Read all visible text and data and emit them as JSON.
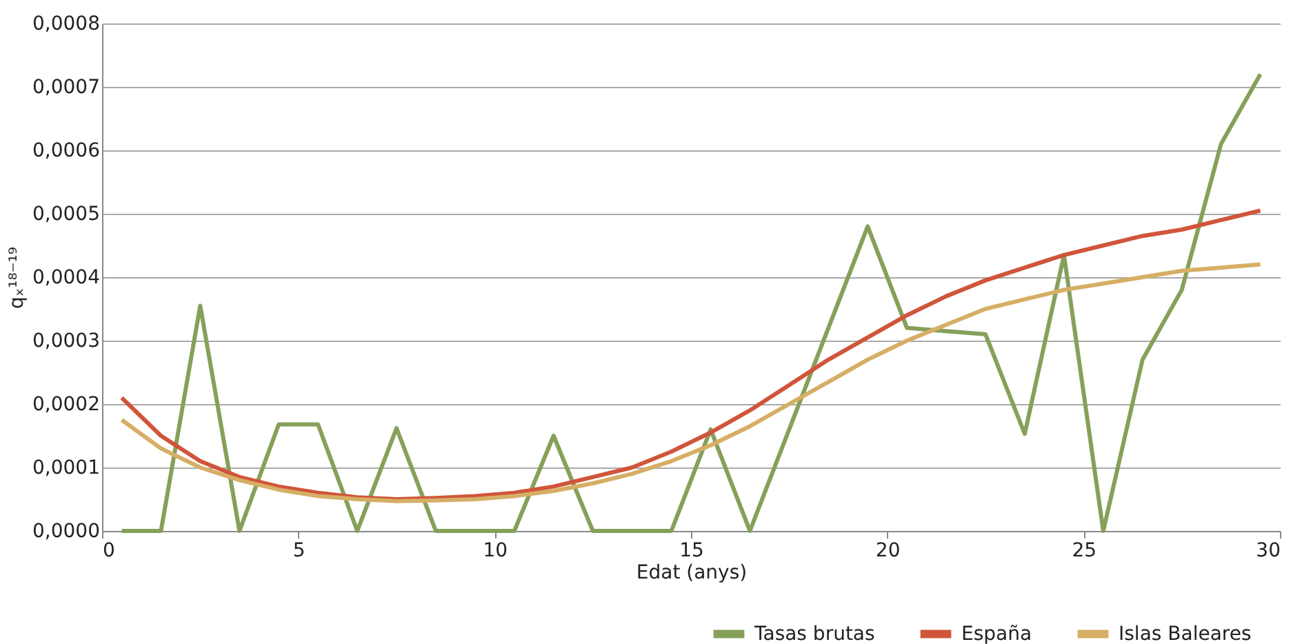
{
  "chart_data": {
    "type": "line",
    "xlabel": "Edat (anys)",
    "ylabel": "qₓ¹⁸⁻¹⁹",
    "x": [
      0.5,
      1.5,
      2.5,
      3.5,
      4.5,
      5.5,
      6.5,
      7.5,
      8.5,
      9.5,
      10.5,
      11.5,
      12.5,
      13.5,
      14.5,
      15.5,
      16.5,
      17.5,
      18.5,
      19.5,
      20.5,
      21.5,
      22.5,
      23.5,
      24.5,
      25.5,
      26.5,
      27.5,
      28.5,
      29.5
    ],
    "series": [
      {
        "name": "Tasas brutas",
        "color": "#86a05a",
        "values": [
          0,
          0,
          0.000355,
          0,
          0.000168,
          0.000168,
          0,
          0.000162,
          0,
          0,
          0,
          0.00015,
          0,
          0,
          0,
          0.00016,
          0,
          0.00016,
          0.00032,
          0.00048,
          0.00032,
          0.000315,
          0.00031,
          0.000153,
          0.000435,
          0,
          0.00027,
          0.00038,
          0.00061,
          0.00072
        ]
      },
      {
        "name": "España",
        "color": "#d0553a",
        "values": [
          0.00021,
          0.00015,
          0.00011,
          8.5e-05,
          7e-05,
          6e-05,
          5.3e-05,
          5e-05,
          5.2e-05,
          5.5e-05,
          6e-05,
          7e-05,
          8.5e-05,
          0.0001,
          0.000125,
          0.000155,
          0.00019,
          0.00023,
          0.00027,
          0.000305,
          0.00034,
          0.00037,
          0.000395,
          0.000415,
          0.000435,
          0.00045,
          0.000465,
          0.000475,
          0.00049,
          0.000505
        ]
      },
      {
        "name": "Islas Baleares",
        "color": "#d6ae65",
        "values": [
          0.000175,
          0.00013,
          0.0001,
          8e-05,
          6.5e-05,
          5.5e-05,
          5e-05,
          4.7e-05,
          4.8e-05,
          5e-05,
          5.5e-05,
          6.3e-05,
          7.5e-05,
          9e-05,
          0.00011,
          0.000135,
          0.000165,
          0.0002,
          0.000235,
          0.00027,
          0.0003,
          0.000325,
          0.00035,
          0.000365,
          0.00038,
          0.00039,
          0.0004,
          0.00041,
          0.000415,
          0.00042
        ]
      }
    ],
    "xlim": [
      0,
      30
    ],
    "xticks": [
      0,
      5,
      10,
      15,
      20,
      25,
      30
    ],
    "ylim": [
      0,
      0.0008
    ],
    "yticks": [
      {
        "value": 0,
        "label": "0,0000"
      },
      {
        "value": 0.0001,
        "label": "0,0001"
      },
      {
        "value": 0.0002,
        "label": "0,0002"
      },
      {
        "value": 0.0003,
        "label": "0,0003"
      },
      {
        "value": 0.0004,
        "label": "0,0004"
      },
      {
        "value": 0.0005,
        "label": "0,0005"
      },
      {
        "value": 0.0006,
        "label": "0,0006"
      },
      {
        "value": 0.0007,
        "label": "0,0007"
      },
      {
        "value": 0.0008,
        "label": "0,0008"
      }
    ],
    "grid": "y",
    "legend": "bottom right",
    "marker": "none",
    "line_style": "solid"
  }
}
